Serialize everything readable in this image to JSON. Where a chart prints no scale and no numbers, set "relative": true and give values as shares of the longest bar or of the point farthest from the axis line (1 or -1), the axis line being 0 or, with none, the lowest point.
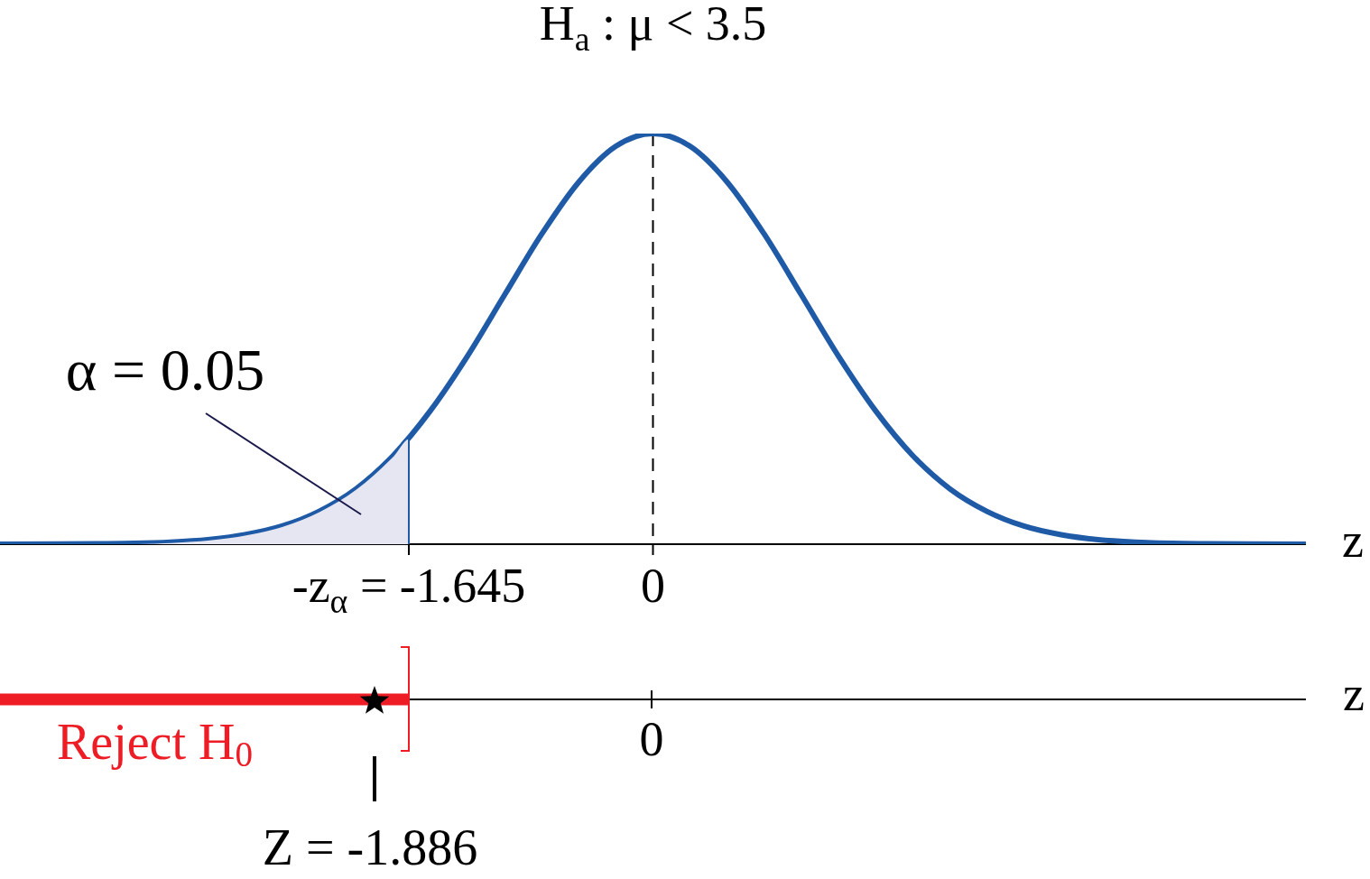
{
  "chart_data": [
    {
      "type": "line",
      "title": "H$_{a}$ : μ < 3.5",
      "xlabel": "z",
      "relative": true,
      "xlim": [
        -4.4,
        4.4
      ],
      "xticks": [
        {
          "value": -1.645,
          "label": "-z$_{α}$ = -1.645"
        },
        0
      ],
      "marker": "none",
      "series": [
        {
          "type": "area",
          "color": "#e6e6f2",
          "x": [
            -4.4,
            -4,
            -3.75,
            -3.5,
            -3.25,
            -3,
            -2.75,
            -2.5,
            -2.25,
            -2,
            -1.75,
            -1.645,
            -1.645
          ],
          "values": [
            0,
            0.0003,
            0.001,
            0.002,
            0.005,
            0.011,
            0.023,
            0.044,
            0.08,
            0.135,
            0.216,
            0.259,
            0
          ]
        },
        {
          "type": "line",
          "color": "#1f5aa6",
          "x": [
            -4.4,
            -4,
            -3.75,
            -3.5,
            -3.25,
            -3,
            -2.75,
            -2.5,
            -2.25,
            -2,
            -1.75,
            -1.5,
            -1.25,
            -1,
            -0.75,
            -0.5,
            -0.25,
            0,
            0.25,
            0.5,
            0.75,
            1,
            1.25,
            1.5,
            1.75,
            2,
            2.25,
            2.5,
            2.75,
            3,
            3.25,
            3.5,
            3.75,
            4,
            4.4
          ],
          "values": [
            0,
            0.0003,
            0.001,
            0.002,
            0.005,
            0.011,
            0.023,
            0.044,
            0.08,
            0.135,
            0.216,
            0.325,
            0.458,
            0.607,
            0.755,
            0.882,
            0.969,
            1,
            0.969,
            0.882,
            0.755,
            0.607,
            0.458,
            0.325,
            0.216,
            0.135,
            0.08,
            0.044,
            0.023,
            0.011,
            0.005,
            0.002,
            0.001,
            0.0003,
            0
          ]
        }
      ],
      "ref_lines": [
        {
          "axis": "x",
          "value": 0,
          "line_style": "dashed",
          "color": "#000000"
        }
      ],
      "annotations": [
        "α = 0.05"
      ]
    },
    {
      "type": "other",
      "xlabel": "z",
      "annotations": [
        "Reject H$_{0}$",
        "0",
        "Z = -1.886"
      ]
    }
  ]
}
